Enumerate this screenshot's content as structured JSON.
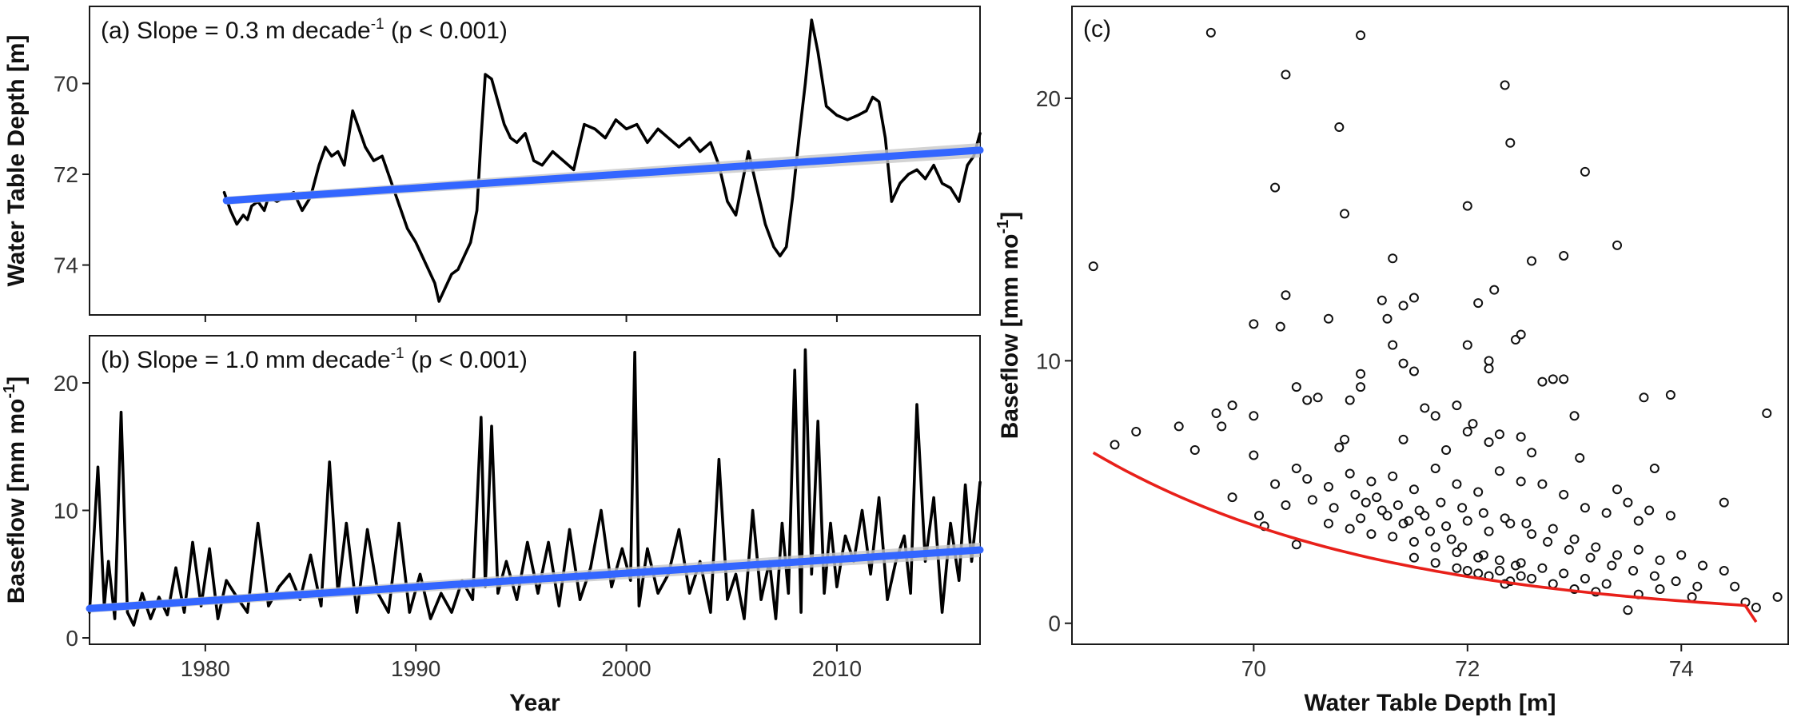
{
  "chart_data": [
    {
      "type": "line",
      "panel": "(a)",
      "title": "(a) Slope = 0.3 m decade",
      "title_superscript": "-1",
      "title_suffix": " (p < 0.001)",
      "xlabel": "",
      "ylabel": "Water Table Depth [m]",
      "y_inverted": true,
      "xlim": [
        1974.5,
        2016.8
      ],
      "ylim": [
        75.1,
        68.3
      ],
      "xticks": [
        1980,
        1990,
        2000,
        2010
      ],
      "yticks": [
        70,
        72,
        74
      ],
      "grid": false,
      "series": [
        {
          "color": "#000000",
          "x": [
            1980.9,
            1981.2,
            1981.5,
            1981.8,
            1982.0,
            1982.2,
            1982.5,
            1982.8,
            1983.0,
            1983.4,
            1983.8,
            1984.2,
            1984.6,
            1985.0,
            1985.4,
            1985.7,
            1986.0,
            1986.3,
            1986.6,
            1987.0,
            1987.3,
            1987.6,
            1988.0,
            1988.4,
            1988.7,
            1989.0,
            1989.3,
            1989.6,
            1990.0,
            1990.3,
            1990.6,
            1990.9,
            1991.1,
            1991.4,
            1991.7,
            1992.0,
            1992.3,
            1992.6,
            1992.9,
            1993.1,
            1993.3,
            1993.6,
            1993.9,
            1994.2,
            1994.5,
            1994.8,
            1995.2,
            1995.6,
            1996.0,
            1996.5,
            1997.0,
            1997.5,
            1998.0,
            1998.5,
            1999.0,
            1999.5,
            2000.0,
            2000.5,
            2001.0,
            2001.5,
            2002.0,
            2002.5,
            2003.0,
            2003.5,
            2004.0,
            2004.4,
            2004.8,
            2005.2,
            2005.5,
            2005.8,
            2006.2,
            2006.6,
            2007.0,
            2007.3,
            2007.6,
            2007.9,
            2008.2,
            2008.5,
            2008.8,
            2009.1,
            2009.5,
            2010.0,
            2010.5,
            2011.0,
            2011.4,
            2011.7,
            2012.0,
            2012.3,
            2012.6,
            2013.0,
            2013.4,
            2013.8,
            2014.2,
            2014.6,
            2015.0,
            2015.4,
            2015.8,
            2016.2,
            2016.5,
            2016.8
          ],
          "y": [
            72.4,
            72.8,
            73.1,
            72.9,
            73.0,
            72.7,
            72.6,
            72.8,
            72.5,
            72.6,
            72.5,
            72.4,
            72.8,
            72.5,
            71.8,
            71.4,
            71.6,
            71.5,
            71.8,
            70.6,
            71.0,
            71.4,
            71.7,
            71.6,
            72.0,
            72.4,
            72.8,
            73.2,
            73.5,
            73.8,
            74.1,
            74.4,
            74.8,
            74.5,
            74.2,
            74.1,
            73.8,
            73.5,
            72.8,
            71.2,
            69.8,
            69.9,
            70.4,
            70.9,
            71.2,
            71.3,
            71.1,
            71.7,
            71.8,
            71.5,
            71.7,
            71.9,
            70.9,
            71.0,
            71.2,
            70.8,
            71.0,
            70.9,
            71.3,
            71.0,
            71.2,
            71.4,
            71.2,
            71.5,
            71.3,
            71.8,
            72.6,
            72.9,
            72.2,
            71.5,
            72.3,
            73.1,
            73.6,
            73.8,
            73.6,
            72.5,
            71.2,
            70.0,
            68.6,
            69.3,
            70.5,
            70.7,
            70.8,
            70.7,
            70.6,
            70.3,
            70.4,
            71.2,
            72.6,
            72.2,
            72.0,
            71.9,
            72.1,
            71.8,
            72.2,
            72.3,
            72.6,
            71.8,
            71.6,
            71.1
          ]
        },
        {
          "color": "#3366ff",
          "name": "",
          "x": [
            1981.0,
            2016.8
          ],
          "y": [
            72.58,
            71.47
          ]
        }
      ]
    },
    {
      "type": "line",
      "panel": "(b)",
      "title": "(b) Slope = 1.0 mm decade",
      "title_superscript": "-1",
      "title_suffix": " (p < 0.001)",
      "xlabel": "Year",
      "ylabel": "Baseflow [mm mo",
      "ylabel_superscript": "-1",
      "ylabel_suffix": "]",
      "xlim": [
        1974.5,
        2016.8
      ],
      "ylim": [
        -0.5,
        23.7
      ],
      "xticks": [
        1980,
        1990,
        2000,
        2010
      ],
      "yticks": [
        0,
        10,
        20
      ],
      "grid": false,
      "series": [
        {
          "color": "#000000",
          "x": [
            1974.5,
            1974.9,
            1975.2,
            1975.4,
            1975.7,
            1976.0,
            1976.3,
            1976.6,
            1977.0,
            1977.4,
            1977.8,
            1978.2,
            1978.6,
            1979.0,
            1979.4,
            1979.8,
            1980.2,
            1980.6,
            1981.0,
            1981.5,
            1982.0,
            1982.5,
            1983.0,
            1983.5,
            1984.0,
            1984.5,
            1985.0,
            1985.5,
            1985.9,
            1986.3,
            1986.7,
            1987.2,
            1987.7,
            1988.2,
            1988.7,
            1989.2,
            1989.7,
            1990.2,
            1990.7,
            1991.2,
            1991.7,
            1992.2,
            1992.7,
            1993.1,
            1993.3,
            1993.6,
            1993.9,
            1994.3,
            1994.8,
            1995.3,
            1995.8,
            1996.3,
            1996.8,
            1997.3,
            1997.8,
            1998.3,
            1998.8,
            1999.3,
            1999.8,
            2000.2,
            2000.4,
            2000.6,
            2001.0,
            2001.5,
            2002.0,
            2002.5,
            2003.0,
            2003.5,
            2004.0,
            2004.4,
            2004.8,
            2005.2,
            2005.6,
            2006.0,
            2006.4,
            2006.8,
            2007.1,
            2007.4,
            2007.7,
            2008.0,
            2008.3,
            2008.5,
            2008.8,
            2009.1,
            2009.4,
            2009.7,
            2010.0,
            2010.4,
            2010.8,
            2011.2,
            2011.6,
            2012.0,
            2012.4,
            2012.8,
            2013.2,
            2013.5,
            2013.8,
            2014.2,
            2014.6,
            2015.0,
            2015.4,
            2015.8,
            2016.1,
            2016.4,
            2016.8
          ],
          "y": [
            2.0,
            13.4,
            2.5,
            6.0,
            1.5,
            17.7,
            2.0,
            1.0,
            3.5,
            1.5,
            3.2,
            1.8,
            5.5,
            2.0,
            7.5,
            2.5,
            7.0,
            1.5,
            4.5,
            3.2,
            2.0,
            9.0,
            2.5,
            4.0,
            5.0,
            3.0,
            6.5,
            2.5,
            13.8,
            3.5,
            9.0,
            2.0,
            8.5,
            3.5,
            2.0,
            9.0,
            2.0,
            5.0,
            1.5,
            3.5,
            2.0,
            4.5,
            3.0,
            17.3,
            4.0,
            16.6,
            3.5,
            6.0,
            3.0,
            7.5,
            3.5,
            7.5,
            2.5,
            8.5,
            3.0,
            5.5,
            10.0,
            4.0,
            7.0,
            4.5,
            22.4,
            2.5,
            7.0,
            3.5,
            5.0,
            8.5,
            3.5,
            6.0,
            2.0,
            14.0,
            3.0,
            5.0,
            1.5,
            10.0,
            3.0,
            6.0,
            1.5,
            9.0,
            3.5,
            21.0,
            2.0,
            22.6,
            5.0,
            17.0,
            3.5,
            9.0,
            4.0,
            8.0,
            6.0,
            10.0,
            5.0,
            11.0,
            3.0,
            6.0,
            8.0,
            3.5,
            18.3,
            6.0,
            11.0,
            2.0,
            9.0,
            4.5,
            12.0,
            6.0,
            12.2
          ]
        },
        {
          "color": "#3366ff",
          "name": "",
          "x": [
            1974.5,
            2016.8
          ],
          "y": [
            2.3,
            6.9
          ]
        }
      ]
    },
    {
      "type": "scatter",
      "panel": "(c)",
      "title": "(c)",
      "xlabel": "Water Table Depth [m]",
      "ylabel": "Baseflow [mm mo",
      "ylabel_superscript": "-1",
      "ylabel_suffix": "]",
      "xlim": [
        68.3,
        75.0
      ],
      "ylim": [
        -0.8,
        23.5
      ],
      "xticks": [
        70,
        72,
        74
      ],
      "yticks": [
        0,
        10,
        20
      ],
      "grid": false,
      "points": [
        [
          68.5,
          13.6
        ],
        [
          69.6,
          22.5
        ],
        [
          70.3,
          20.9
        ],
        [
          71.0,
          22.4
        ],
        [
          72.35,
          20.5
        ],
        [
          72.4,
          18.3
        ],
        [
          70.8,
          18.9
        ],
        [
          73.1,
          17.2
        ],
        [
          70.2,
          16.6
        ],
        [
          70.85,
          15.6
        ],
        [
          72.0,
          15.9
        ],
        [
          73.4,
          14.4
        ],
        [
          72.9,
          14.0
        ],
        [
          72.6,
          13.8
        ],
        [
          71.3,
          13.9
        ],
        [
          70.3,
          12.5
        ],
        [
          72.25,
          12.7
        ],
        [
          72.1,
          12.2
        ],
        [
          71.5,
          12.4
        ],
        [
          71.4,
          12.1
        ],
        [
          71.2,
          12.3
        ],
        [
          70.25,
          11.3
        ],
        [
          70.0,
          11.4
        ],
        [
          72.5,
          11.0
        ],
        [
          72.45,
          10.8
        ],
        [
          71.25,
          11.6
        ],
        [
          72.0,
          10.6
        ],
        [
          72.2,
          10.0
        ],
        [
          71.3,
          10.6
        ],
        [
          70.7,
          11.6
        ],
        [
          70.4,
          9.0
        ],
        [
          71.0,
          9.5
        ],
        [
          71.5,
          9.6
        ],
        [
          71.4,
          9.9
        ],
        [
          72.2,
          9.7
        ],
        [
          72.9,
          9.3
        ],
        [
          72.7,
          9.2
        ],
        [
          72.8,
          9.3
        ],
        [
          73.9,
          8.7
        ],
        [
          73.65,
          8.6
        ],
        [
          74.8,
          8.0
        ],
        [
          69.65,
          8.0
        ],
        [
          69.7,
          7.5
        ],
        [
          69.3,
          7.5
        ],
        [
          68.9,
          7.3
        ],
        [
          68.7,
          6.8
        ],
        [
          69.8,
          8.3
        ],
        [
          70.0,
          7.9
        ],
        [
          70.5,
          8.5
        ],
        [
          70.6,
          8.6
        ],
        [
          70.9,
          8.5
        ],
        [
          71.0,
          9.0
        ],
        [
          71.6,
          8.2
        ],
        [
          71.7,
          7.9
        ],
        [
          71.9,
          8.3
        ],
        [
          72.05,
          7.6
        ],
        [
          72.0,
          7.3
        ],
        [
          72.3,
          7.2
        ],
        [
          72.5,
          7.1
        ],
        [
          73.0,
          7.9
        ],
        [
          73.05,
          6.3
        ],
        [
          72.6,
          6.5
        ],
        [
          72.2,
          6.9
        ],
        [
          71.8,
          6.6
        ],
        [
          71.4,
          7.0
        ],
        [
          70.85,
          7.0
        ],
        [
          70.8,
          6.7
        ],
        [
          70.4,
          5.9
        ],
        [
          70.2,
          5.3
        ],
        [
          70.0,
          6.4
        ],
        [
          69.8,
          4.8
        ],
        [
          69.45,
          6.6
        ],
        [
          70.05,
          4.1
        ],
        [
          70.1,
          3.7
        ],
        [
          70.4,
          3.0
        ],
        [
          70.3,
          4.5
        ],
        [
          70.5,
          5.5
        ],
        [
          70.7,
          5.2
        ],
        [
          70.9,
          5.7
        ],
        [
          71.1,
          5.4
        ],
        [
          71.3,
          5.6
        ],
        [
          71.5,
          5.1
        ],
        [
          71.7,
          5.9
        ],
        [
          71.9,
          5.3
        ],
        [
          72.1,
          5.0
        ],
        [
          72.3,
          5.8
        ],
        [
          72.5,
          5.4
        ],
        [
          72.7,
          5.3
        ],
        [
          72.9,
          4.9
        ],
        [
          73.1,
          4.4
        ],
        [
          73.3,
          4.2
        ],
        [
          73.5,
          4.6
        ],
        [
          73.7,
          4.3
        ],
        [
          73.9,
          4.1
        ],
        [
          74.4,
          4.6
        ],
        [
          73.75,
          5.9
        ],
        [
          73.4,
          5.1
        ],
        [
          73.6,
          3.9
        ],
        [
          71.0,
          4.0
        ],
        [
          71.2,
          4.3
        ],
        [
          71.4,
          3.8
        ],
        [
          71.6,
          4.1
        ],
        [
          71.8,
          3.7
        ],
        [
          72.0,
          3.9
        ],
        [
          72.2,
          3.5
        ],
        [
          72.4,
          3.8
        ],
        [
          72.6,
          3.4
        ],
        [
          72.8,
          3.6
        ],
        [
          73.0,
          3.2
        ],
        [
          73.2,
          2.9
        ],
        [
          73.4,
          2.6
        ],
        [
          73.6,
          2.8
        ],
        [
          73.8,
          2.4
        ],
        [
          74.0,
          2.6
        ],
        [
          74.2,
          2.2
        ],
        [
          74.4,
          2.0
        ],
        [
          74.5,
          1.4
        ],
        [
          74.6,
          0.8
        ],
        [
          74.7,
          0.6
        ],
        [
          74.9,
          1.0
        ],
        [
          73.5,
          0.5
        ],
        [
          73.3,
          1.5
        ],
        [
          73.1,
          1.7
        ],
        [
          72.9,
          1.9
        ],
        [
          72.7,
          2.1
        ],
        [
          72.5,
          2.3
        ],
        [
          72.3,
          2.4
        ],
        [
          72.1,
          2.5
        ],
        [
          71.9,
          2.7
        ],
        [
          71.7,
          2.9
        ],
        [
          71.5,
          3.1
        ],
        [
          71.3,
          3.3
        ],
        [
          71.1,
          3.4
        ],
        [
          70.9,
          3.6
        ],
        [
          70.7,
          3.8
        ],
        [
          72.0,
          2.0
        ],
        [
          72.2,
          1.8
        ],
        [
          72.4,
          1.6
        ],
        [
          72.6,
          1.7
        ],
        [
          72.8,
          1.5
        ],
        [
          73.0,
          1.3
        ],
        [
          73.2,
          1.2
        ],
        [
          73.6,
          1.1
        ],
        [
          73.8,
          1.3
        ],
        [
          74.1,
          1.0
        ],
        [
          71.5,
          2.5
        ],
        [
          71.7,
          2.3
        ],
        [
          71.9,
          2.1
        ],
        [
          72.1,
          1.9
        ],
        [
          72.3,
          2.0
        ],
        [
          72.5,
          1.8
        ],
        [
          72.35,
          1.5
        ],
        [
          72.45,
          2.2
        ],
        [
          72.15,
          2.6
        ],
        [
          71.95,
          2.9
        ],
        [
          71.85,
          3.2
        ],
        [
          71.65,
          3.5
        ],
        [
          71.45,
          3.9
        ],
        [
          71.25,
          4.1
        ],
        [
          71.05,
          4.6
        ],
        [
          70.95,
          4.9
        ],
        [
          70.75,
          4.4
        ],
        [
          70.55,
          4.7
        ],
        [
          71.15,
          4.8
        ],
        [
          71.35,
          4.5
        ],
        [
          71.55,
          4.3
        ],
        [
          71.75,
          4.6
        ],
        [
          71.95,
          4.4
        ],
        [
          72.15,
          4.2
        ],
        [
          72.35,
          4.0
        ],
        [
          72.55,
          3.8
        ],
        [
          72.75,
          3.1
        ],
        [
          72.95,
          2.8
        ],
        [
          73.15,
          2.5
        ],
        [
          73.35,
          2.2
        ],
        [
          73.55,
          2.0
        ],
        [
          73.75,
          1.8
        ],
        [
          73.95,
          1.6
        ],
        [
          74.15,
          1.4
        ]
      ]
    }
  ]
}
